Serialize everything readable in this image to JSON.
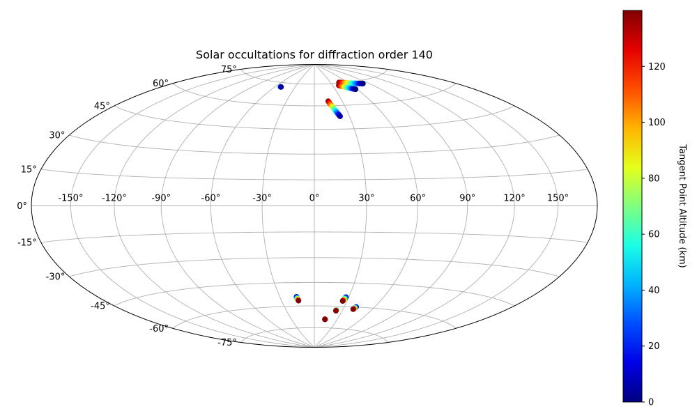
{
  "chart_data": {
    "type": "scatter",
    "projection": "hammer",
    "title": "Solar occultations for diffraction order 140",
    "grid": true,
    "xlim": [
      -180,
      180
    ],
    "ylim": [
      -90,
      90
    ],
    "longitude_ticks": [
      -150,
      -120,
      -90,
      -60,
      -30,
      0,
      30,
      60,
      90,
      120,
      150
    ],
    "latitude_ticks": [
      -75,
      -60,
      -45,
      -30,
      -15,
      0,
      15,
      30,
      45,
      60,
      75
    ],
    "longitude_tick_labels": [
      "-150°",
      "-120°",
      "-90°",
      "-60°",
      "-30°",
      "0°",
      "30°",
      "60°",
      "90°",
      "120°",
      "150°"
    ],
    "latitude_tick_labels": [
      "-75°",
      "-60°",
      "-45°",
      "-30°",
      "-15°",
      "0°",
      "15°",
      "30°",
      "45°",
      "60°",
      "75°"
    ],
    "colorbar": {
      "label": "Tangent Point Altitude (km)",
      "colormap": "jet",
      "range": [
        0,
        140
      ],
      "ticks": [
        0,
        20,
        40,
        60,
        80,
        100,
        120
      ],
      "tick_labels": [
        "0",
        "20",
        "40",
        "60",
        "80",
        "100",
        "120"
      ]
    },
    "tracks": [
      {
        "lon_start": -52.0,
        "lat_start": 72.0,
        "alt_start": 40,
        "lon_end": -51.0,
        "lat_end": 72.0,
        "alt_end": 5
      },
      {
        "lon_start": 15.0,
        "lat_start": 63.0,
        "alt_start": 140,
        "lon_end": 22.0,
        "lat_end": 53.0,
        "alt_end": 5
      },
      {
        "lon_start": 45.5,
        "lat_start": 75.5,
        "alt_start": 140,
        "lon_end": 81.0,
        "lat_end": 73.0,
        "alt_end": 0
      },
      {
        "lon_start": 40.0,
        "lat_start": 73.5,
        "alt_start": 140,
        "lon_end": 58.0,
        "lat_end": 70.0,
        "alt_end": 0
      },
      {
        "lon_start": -15.5,
        "lat_start": -54.0,
        "alt_start": 5,
        "lon_end": -14.5,
        "lat_end": -56.5,
        "alt_end": 140
      },
      {
        "lon_start": 27.5,
        "lat_start": -54.0,
        "alt_start": 5,
        "lon_end": 26.0,
        "lat_end": -56.5,
        "alt_end": 140
      },
      {
        "lon_start": 42.0,
        "lat_start": -60.0,
        "alt_start": 5,
        "lon_end": 40.5,
        "lat_end": -61.5,
        "alt_end": 140
      },
      {
        "lon_start": 23.5,
        "lat_start": -62.5,
        "alt_start": 60,
        "lon_end": 23.3,
        "lat_end": -63.0,
        "alt_end": 140
      },
      {
        "lon_start": 14.0,
        "lat_start": -69.0,
        "alt_start": 140,
        "lon_end": 14.0,
        "lat_end": -69.0,
        "alt_end": 140
      }
    ]
  }
}
